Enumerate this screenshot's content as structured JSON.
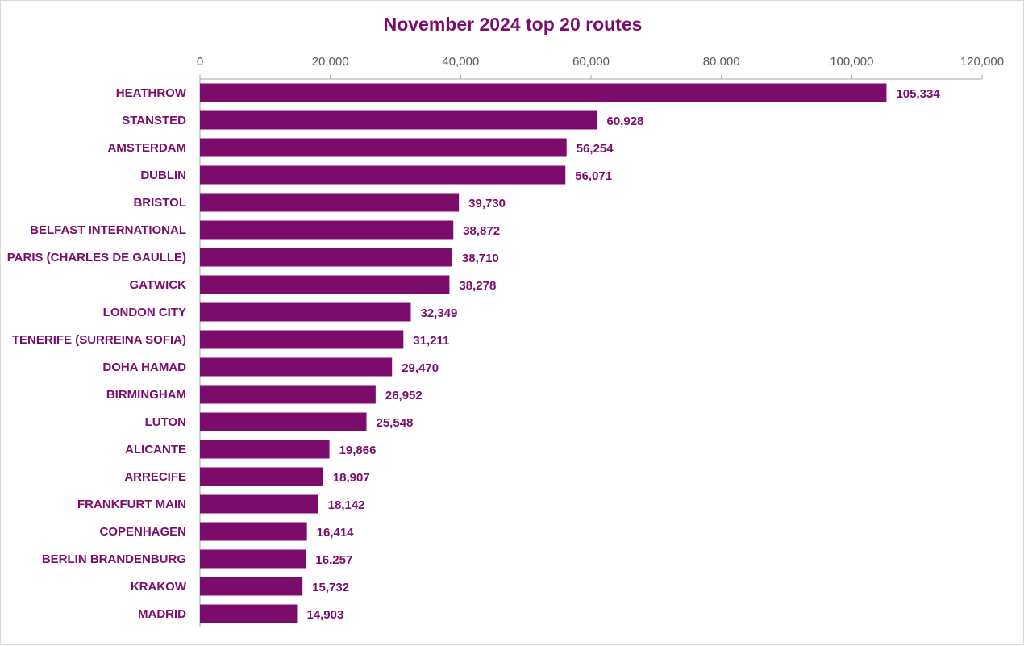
{
  "theme": {
    "bar_color": "#7b0c6b",
    "text_color": "#7b0c6b",
    "axis_color": "#a6a6a6"
  },
  "chart_data": {
    "type": "bar",
    "orientation": "horizontal",
    "title": "November 2024 top 20 routes",
    "xlabel": "",
    "ylabel": "",
    "xlim": [
      0,
      120000
    ],
    "x_ticks": [
      "0",
      "20,000",
      "40,000",
      "60,000",
      "80,000",
      "100,000",
      "120,000"
    ],
    "x_axis_position": "top",
    "grid": false,
    "legend": "none",
    "categories": [
      "HEATHROW",
      "STANSTED",
      "AMSTERDAM",
      "DUBLIN",
      "BRISTOL",
      "BELFAST INTERNATIONAL",
      "PARIS (CHARLES DE GAULLE)",
      "GATWICK",
      "LONDON CITY",
      "TENERIFE (SURREINA SOFIA)",
      "DOHA HAMAD",
      "BIRMINGHAM",
      "LUTON",
      "ALICANTE",
      "ARRECIFE",
      "FRANKFURT MAIN",
      "COPENHAGEN",
      "BERLIN BRANDENBURG",
      "KRAKOW",
      "MADRID"
    ],
    "values": [
      105334,
      60928,
      56254,
      56071,
      39730,
      38872,
      38710,
      38278,
      32349,
      31211,
      29470,
      26952,
      25548,
      19866,
      18907,
      18142,
      16414,
      16257,
      15732,
      14903
    ],
    "data_labels": [
      "105,334",
      "60,928",
      "56,254",
      "56,071",
      "39,730",
      "38,872",
      "38,710",
      "38,278",
      "32,349",
      "31,211",
      "29,470",
      "26,952",
      "25,548",
      "19,866",
      "18,907",
      "18,142",
      "16,414",
      "16,257",
      "15,732",
      "14,903"
    ]
  }
}
